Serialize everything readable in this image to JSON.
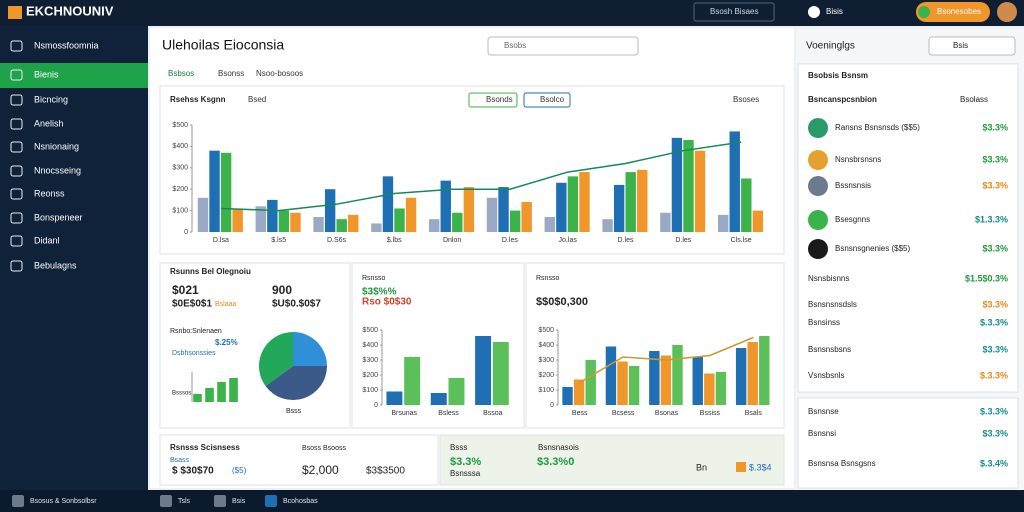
{
  "ui": {
    "brand": "EKCHNOUNIV",
    "top_search": "Bsosh Bisaes",
    "top_user": "Bisis",
    "top_button": "Bsonesobes",
    "sidebar": [
      "Nsmossfoomnia",
      "Bienis",
      "Bicncing",
      "Anelish",
      "Nsnionaing",
      "Nnocsseing",
      "Reonss",
      "Bonspeneer",
      "Didanl",
      "Bebulagns"
    ],
    "taskbar": [
      "Bsosus & Sonbsolbsr",
      "Tsls",
      "Bsis",
      "Bcohosbas"
    ],
    "page_title": "Ulehoilas Eioconsia",
    "page_search": "Bsobs",
    "tabs": [
      "Bsbsos",
      "Bsonss",
      "Nsoo-bosoos"
    ],
    "main_filter": "Bsed",
    "main_buttons": [
      "Bsonds",
      "Bsolco",
      "Bsoses"
    ],
    "card1": {
      "title": "Rsunns Bel Olegnoiu",
      "v1": "$021",
      "v2": "900",
      "v3": "$0E$0$1",
      "v3_note": "Bslaaa",
      "v4": "$U$0.$0$7",
      "sub": "Rsnbo:Snlenaen",
      "pct": "$.25%",
      "note": "Dsbhsonssies",
      "foot1": "Bsssos",
      "foot2": "Bsss"
    },
    "card2": {
      "title": "Rsnsso",
      "v1": "$3$%%",
      "v2": "Rso $0$30"
    },
    "card3": {
      "title": "Rsnsso",
      "v1": "$$0$0,300"
    },
    "cardA": {
      "title": "Rsnsss Scisnsess",
      "sub1": "Bsoss Bsooss",
      "sub2": "Bsass",
      "v1": "$ $30$70",
      "v1_note": "($5)",
      "v2": "$2,000",
      "v3": "$3$3500"
    },
    "cardB": {
      "title": "Bsss",
      "sub": "Bsnsnasois",
      "v1": "$3.3%",
      "v2": "$3.3%0",
      "note": "Bsnsssa",
      "v3": "Bn",
      "v4": "$.3$4"
    },
    "right_title": "Voeninglgs",
    "right_button": "Bsis",
    "right_card_title": "Bsobsis Bsnsm",
    "right_sub": "Bsncanspcsnbion",
    "right_filter": "Bsolass",
    "right_rows": [
      {
        "name": "Ransns Bsnsnsds ($$5)",
        "value": "$3.3%",
        "color": "#1a9a3a"
      },
      {
        "name": "Nsnsbrsnsns",
        "value": "$3.3%",
        "color": "#1a9a3a"
      },
      {
        "name": "Bssnsnsis",
        "value": "$3.3%",
        "color": "#e58a14"
      },
      {
        "name": "Bsesgnns",
        "value": "$1.3.3%",
        "color": "#138a8a"
      },
      {
        "name": "Bsnsnsgnenies ($$5)",
        "value": "$3.3%",
        "color": "#1a9a3a"
      },
      {
        "name": "Nsnsbisnns",
        "value": "$1.5$0.3%",
        "color": "#1a9a3a"
      },
      {
        "name": "Bsnsnsnsdsls",
        "value": "$3.3%",
        "color": "#e58a14"
      },
      {
        "name": "Bsnsinss",
        "value": "$.3.3%",
        "color": "#138a8a"
      },
      {
        "name": "Bsnsnsbsns",
        "value": "$3.3%",
        "color": "#138a8a"
      },
      {
        "name": "Vsnsbsnls",
        "value": "$.3.3%",
        "color": "#e58a14"
      }
    ],
    "right_lower": [
      {
        "name": "Bsnsnse",
        "value": "$.3.3%",
        "color": "#138a8a"
      },
      {
        "name": "Bsnsnsi",
        "value": "$3.3%",
        "color": "#138a8a"
      },
      {
        "name": "Bsnsnsa Bsnsgsns",
        "value": "$.3.4%",
        "color": "#138a8a"
      }
    ]
  },
  "chart_data": [
    {
      "type": "combo",
      "title": "Rsehss Ksgnn",
      "categories": [
        "D.lsa",
        "$.ls5",
        "D.S6s",
        "$.lbs",
        "Dnlon",
        "D.les",
        "Jo.las",
        "D.les",
        "D.les",
        "Cls.lse"
      ],
      "series": [
        {
          "type": "bar",
          "color": "#9aaac4",
          "values": [
            160,
            120,
            70,
            40,
            60,
            160,
            70,
            60,
            90,
            80
          ]
        },
        {
          "type": "bar",
          "color": "#1f6fb5",
          "values": [
            380,
            150,
            200,
            260,
            240,
            210,
            230,
            220,
            440,
            470
          ]
        },
        {
          "type": "bar",
          "color": "#3cb34a",
          "values": [
            370,
            100,
            60,
            110,
            90,
            100,
            260,
            280,
            430,
            250
          ]
        },
        {
          "type": "bar",
          "color": "#f0962a",
          "values": [
            110,
            90,
            80,
            160,
            210,
            140,
            280,
            290,
            380,
            100
          ]
        },
        {
          "type": "line",
          "color": "#138a5e",
          "values": [
            110,
            100,
            130,
            180,
            200,
            200,
            280,
            320,
            380,
            420
          ]
        }
      ],
      "ylim": [
        0,
        500
      ],
      "yticks": [
        0,
        {
          "value": 100,
          "label": "$100"
        },
        {
          "value": 200,
          "label": "$200"
        },
        {
          "value": 300,
          "label": "$300"
        },
        {
          "value": 400,
          "label": "$400"
        },
        {
          "value": 500,
          "label": "$500"
        }
      ]
    },
    {
      "type": "pie",
      "values": [
        25,
        40,
        35
      ],
      "colors": [
        "#2f8fd8",
        "#3b5a8a",
        "#22a85a"
      ]
    },
    {
      "type": "combo",
      "categories": [
        "Brsunas",
        "Bsless",
        "Bssoa"
      ],
      "series": [
        {
          "type": "bar",
          "color": "#1f6fb5",
          "values": [
            90,
            80,
            460
          ]
        },
        {
          "type": "bar",
          "color": "#5cc05a",
          "values": [
            320,
            180,
            420
          ]
        }
      ],
      "ylim": [
        0,
        500
      ],
      "yticks": [
        0,
        {
          "value": 100,
          "label": "$100"
        },
        {
          "value": 200,
          "label": "$200"
        },
        {
          "value": 300,
          "label": "$300"
        },
        {
          "value": 400,
          "label": "$400"
        },
        {
          "value": 500,
          "label": "$500"
        }
      ]
    },
    {
      "type": "combo",
      "categories": [
        "Bess",
        "Bcsess",
        "Bsonas",
        "Bssiss",
        "Bsals"
      ],
      "series": [
        {
          "type": "bar",
          "color": "#1f6fb5",
          "values": [
            120,
            390,
            360,
            320,
            380
          ]
        },
        {
          "type": "bar",
          "color": "#f0962a",
          "values": [
            170,
            290,
            330,
            210,
            420
          ]
        },
        {
          "type": "bar",
          "color": "#5cc05a",
          "values": [
            300,
            260,
            400,
            220,
            460
          ]
        },
        {
          "type": "line",
          "color": "#c99a2e",
          "values": [
            150,
            320,
            300,
            330,
            450
          ]
        }
      ],
      "ylim": [
        0,
        500
      ],
      "yticks": [
        0,
        {
          "value": 100,
          "label": "$100"
        },
        {
          "value": 200,
          "label": "$200"
        },
        {
          "value": 300,
          "label": "$300"
        },
        {
          "value": 400,
          "label": "$400"
        },
        {
          "value": 500,
          "label": "$500"
        }
      ]
    },
    {
      "type": "combo",
      "categories": [
        null,
        null,
        null,
        null
      ],
      "series": [
        {
          "type": "bar",
          "color": "#3cb34a",
          "values": [
            8,
            14,
            20,
            24
          ]
        }
      ],
      "ylim": [
        0,
        30
      ]
    }
  ]
}
